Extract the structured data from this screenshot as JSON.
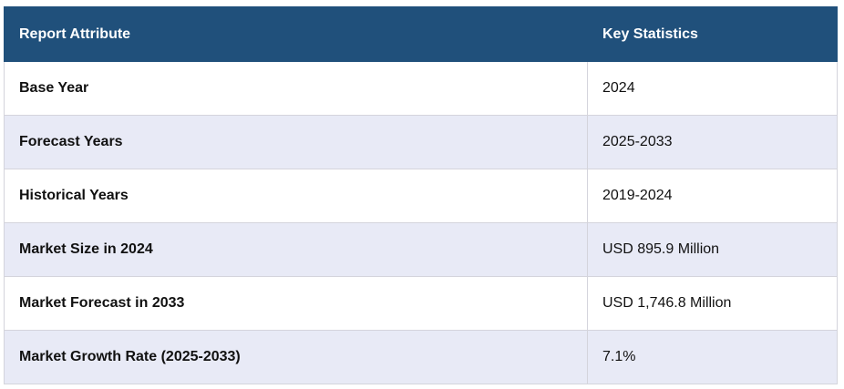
{
  "table": {
    "header": [
      "Report Attribute",
      "Key Statistics"
    ],
    "rows": [
      [
        "Base Year",
        "2024"
      ],
      [
        "Forecast Years",
        "2025-2033"
      ],
      [
        "Historical Years",
        "2019-2024"
      ],
      [
        "Market Size in 2024",
        "USD 895.9 Million"
      ],
      [
        "Market Forecast in 2033",
        "USD 1,746.8 Million"
      ],
      [
        "Market Growth Rate (2025-2033)",
        "7.1%"
      ]
    ]
  }
}
